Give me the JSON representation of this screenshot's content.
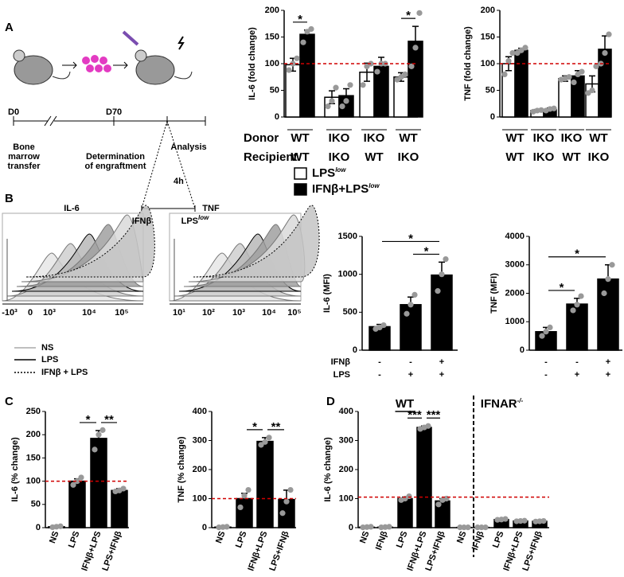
{
  "panels": [
    "A",
    "B",
    "C",
    "D"
  ],
  "schematic": {
    "timeline": [
      "D0",
      "D70"
    ],
    "stages": [
      [
        "Bone",
        "marrow",
        "transfer"
      ],
      [
        "Determination",
        "of engraftment"
      ],
      [
        "Analysis"
      ]
    ],
    "interval": "4h",
    "treatments": [
      {
        "text": "IFNβ"
      },
      {
        "text": "LPS",
        "superscript": "low"
      }
    ]
  },
  "flow_cytometry": {
    "plots": [
      {
        "title": "IL-6",
        "xticks": [
          "-10³",
          "0",
          "10³",
          "10⁴",
          "10⁵"
        ]
      },
      {
        "title": "TNF",
        "xticks": [
          "10¹",
          "10²",
          "10³",
          "10⁴",
          "10⁵"
        ]
      }
    ],
    "legend": [
      "NS",
      "LPS",
      "IFNβ + LPS"
    ]
  },
  "chart_data": [
    {
      "type": "bar",
      "ylabel": "IL-6 (fold change)",
      "ylim": [
        0,
        200
      ],
      "yticks": [
        0,
        50,
        100,
        150,
        200
      ],
      "category_rows": [
        {
          "name": "Donor",
          "labels": [
            "WT",
            "IKO",
            "IKO",
            "WT"
          ]
        },
        {
          "name": "Recipient",
          "labels": [
            "WT",
            "IKO",
            "WT",
            "IKO"
          ]
        }
      ],
      "series": [
        {
          "name": "LPS",
          "name_superscript": "low",
          "color": "#ffffff",
          "values": [
            98,
            37,
            84,
            75
          ],
          "errors": [
            12,
            12,
            17,
            8
          ],
          "points": [
            [
              88,
              100,
              110
            ],
            [
              20,
              30,
              55
            ],
            [
              60,
              95,
              100
            ],
            [
              70,
              75,
              80
            ]
          ]
        },
        {
          "name": "IFNβ+LPS",
          "name_superscript": "low",
          "color": "#000000",
          "values": [
            155,
            40,
            95,
            142
          ],
          "errors": [
            8,
            13,
            17,
            28
          ],
          "points": [
            [
              140,
              160,
              165
            ],
            [
              20,
              30,
              60
            ],
            [
              85,
              100,
              100
            ],
            [
              95,
              130,
              195
            ]
          ]
        }
      ],
      "reference_line": 100,
      "reference_color": "#d00000",
      "point_color": "#999999",
      "significance": [
        {
          "label": "*",
          "from": 0,
          "to": 0
        },
        {
          "label": "*",
          "from": 3,
          "to": 3
        }
      ]
    },
    {
      "type": "bar",
      "ylabel": "TNF (fold change)",
      "ylim": [
        0,
        200
      ],
      "yticks": [
        0,
        50,
        100,
        150,
        200
      ],
      "category_rows": [
        {
          "labels": [
            "WT",
            "IKO",
            "IKO",
            "WT"
          ]
        },
        {
          "labels": [
            "WT",
            "IKO",
            "WT",
            "IKO"
          ]
        }
      ],
      "series": [
        {
          "color": "#ffffff",
          "values": [
            100,
            12,
            72,
            62
          ],
          "errors": [
            13,
            2,
            5,
            15
          ],
          "points": [
            [
              80,
              105,
              120
            ],
            [
              10,
              12,
              13
            ],
            [
              70,
              72,
              75
            ],
            [
              45,
              50,
              95
            ]
          ]
        },
        {
          "color": "#000000",
          "values": [
            125,
            14,
            77,
            127
          ],
          "errors": [
            4,
            3,
            10,
            25
          ],
          "points": [
            [
              120,
              125,
              130
            ],
            [
              12,
              15,
              16
            ],
            [
              65,
              80,
              85
            ],
            [
              100,
              120,
              155
            ]
          ]
        }
      ],
      "reference_line": 100,
      "reference_color": "#d00000",
      "point_color": "#999999"
    },
    {
      "type": "bar",
      "ylabel": "IL-6 (MFI)",
      "ylim": [
        0,
        1500
      ],
      "yticks": [
        0,
        500,
        1000,
        1500
      ],
      "condition_rows": [
        {
          "name": "IFNβ",
          "labels": [
            "-",
            "-",
            "+"
          ]
        },
        {
          "name": "LPS",
          "labels": [
            "-",
            "+",
            "+"
          ]
        }
      ],
      "color": "#000000",
      "values": [
        310,
        600,
        990
      ],
      "errors": [
        30,
        100,
        170
      ],
      "points": [
        [
          280,
          300,
          330
        ],
        [
          480,
          600,
          730
        ],
        [
          780,
          1000,
          1200
        ]
      ],
      "point_color": "#999999",
      "significance": [
        {
          "label": "*",
          "from": 1,
          "to": 2
        },
        {
          "label": "*",
          "from": 0,
          "to": 2
        }
      ]
    },
    {
      "type": "bar",
      "ylabel": "TNF (MFI)",
      "ylim": [
        0,
        4000
      ],
      "yticks": [
        0,
        1000,
        2000,
        3000,
        4000
      ],
      "condition_rows": [
        {
          "labels": [
            "-",
            "-",
            "+"
          ]
        },
        {
          "labels": [
            "-",
            "+",
            "+"
          ]
        }
      ],
      "color": "#000000",
      "values": [
        650,
        1620,
        2500
      ],
      "errors": [
        150,
        200,
        500
      ],
      "points": [
        [
          500,
          650,
          800
        ],
        [
          1400,
          1600,
          1900
        ],
        [
          2000,
          2500,
          3000
        ]
      ],
      "point_color": "#999999",
      "significance": [
        {
          "label": "*",
          "from": 0,
          "to": 1
        },
        {
          "label": "*",
          "from": 0,
          "to": 2
        }
      ]
    },
    {
      "type": "bar",
      "ylabel": "IL-6 (% change)",
      "ylim": [
        0,
        250
      ],
      "yticks": [
        0,
        50,
        100,
        150,
        200,
        250
      ],
      "categories": [
        "NS",
        "LPS",
        "IFNβ+LPS",
        "LPS+IFNβ"
      ],
      "color": "#000000",
      "values": [
        2,
        100,
        192,
        80
      ],
      "errors": [
        0,
        5,
        17,
        4
      ],
      "points": [
        [
          1,
          2,
          3
        ],
        [
          92,
          100,
          108
        ],
        [
          168,
          200,
          210
        ],
        [
          78,
          80,
          84
        ]
      ],
      "point_color": "#999999",
      "reference_line": 100,
      "reference_color": "#d00000",
      "significance": [
        {
          "label": "*",
          "from": 1,
          "to": 2
        },
        {
          "label": "**",
          "from": 2,
          "to": 3
        }
      ]
    },
    {
      "type": "bar",
      "ylabel": "TNF (% change)",
      "ylim": [
        0,
        400
      ],
      "yticks": [
        0,
        100,
        200,
        300,
        400
      ],
      "categories": [
        "NS",
        "LPS",
        "IFNβ+LPS",
        "LPS+IFNβ"
      ],
      "color": "#000000",
      "values": [
        2,
        100,
        297,
        97
      ],
      "errors": [
        0,
        18,
        13,
        32
      ],
      "points": [
        [
          1,
          2,
          3
        ],
        [
          70,
          110,
          130
        ],
        [
          285,
          295,
          310
        ],
        [
          50,
          90,
          130
        ]
      ],
      "point_color": "#999999",
      "reference_line": 100,
      "reference_color": "#d00000",
      "significance": [
        {
          "label": "*",
          "from": 1,
          "to": 2
        },
        {
          "label": "**",
          "from": 2,
          "to": 3
        }
      ]
    },
    {
      "type": "bar",
      "ylabel": "IL-6 (% change)",
      "ylim": [
        0,
        400
      ],
      "yticks": [
        0,
        100,
        200,
        300,
        400
      ],
      "categories": [
        "NS",
        "IFNβ",
        "LPS",
        "IFNβ+LPS",
        "LPS+IFNβ",
        "NS",
        "IFNβ",
        "LPS",
        "IFNβ+LPS",
        "LPS+IFNβ"
      ],
      "groups": [
        {
          "label": "WT",
          "from": 0,
          "to": 4
        },
        {
          "label": "IFNAR",
          "label_superscript": "-/-",
          "from": 5,
          "to": 9
        }
      ],
      "color": "#000000",
      "values": [
        2,
        2,
        100,
        345,
        92,
        1,
        1,
        28,
        23,
        22
      ],
      "errors": [
        0,
        0,
        5,
        5,
        8,
        0,
        0,
        2,
        1,
        1
      ],
      "points": [
        [
          1,
          2,
          3
        ],
        [
          1,
          2,
          3
        ],
        [
          95,
          100,
          108
        ],
        [
          340,
          345,
          350
        ],
        [
          80,
          95,
          100
        ],
        [
          1,
          1,
          1
        ],
        [
          1,
          1,
          1
        ],
        [
          27,
          28,
          30
        ],
        [
          22,
          23,
          24
        ],
        [
          21,
          22,
          23
        ]
      ],
      "point_color": "#999999",
      "reference_line": 105,
      "reference_color": "#d00000",
      "significance": [
        {
          "label": "***",
          "from": 2,
          "to": 3
        },
        {
          "label": "***",
          "from": 3,
          "to": 4
        }
      ]
    }
  ]
}
